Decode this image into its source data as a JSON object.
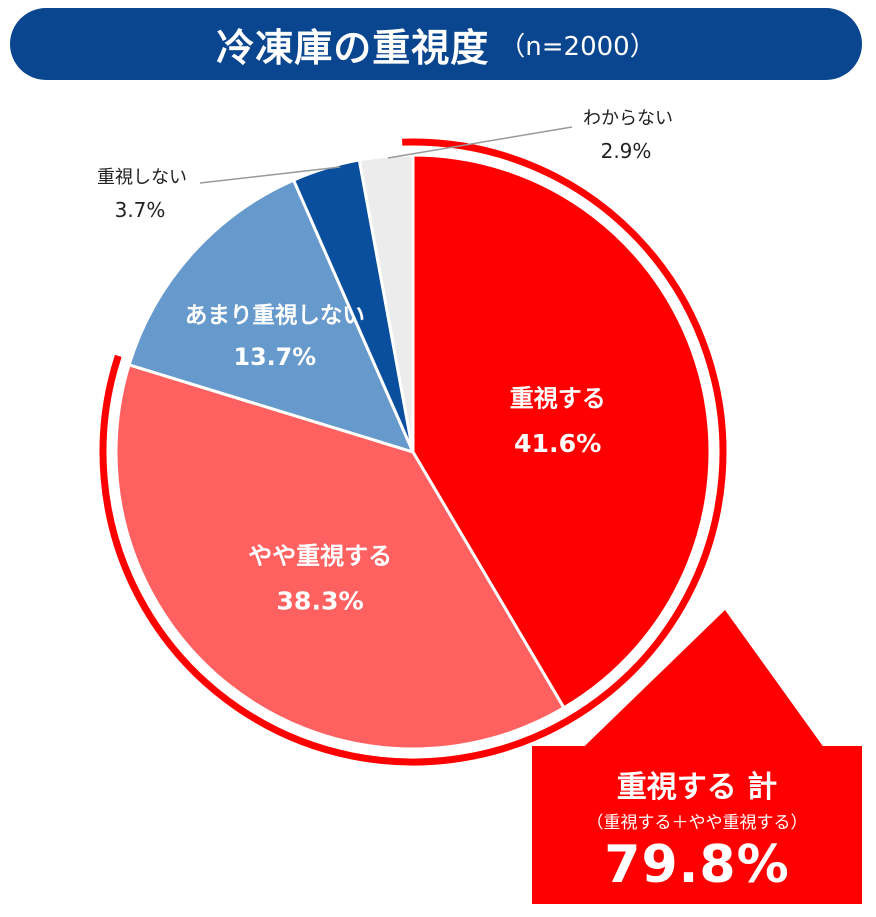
{
  "title": {
    "main": "冷凍庫の重視度",
    "sub": "（n=2000）"
  },
  "chart_data": {
    "type": "pie",
    "categories": [
      "重視する",
      "やや重視する",
      "あまり重視しない",
      "重視しない",
      "わからない"
    ],
    "values": [
      41.6,
      38.3,
      13.7,
      3.7,
      2.9
    ],
    "labels": [
      "41.6%",
      "38.3%",
      "13.7%",
      "3.7%",
      "2.9%"
    ],
    "colors": [
      "#ff0000",
      "#ff6060",
      "#6699cc",
      "#0a4f9e",
      "#ececec"
    ],
    "start_angle": "12 o'clock",
    "direction": "clockwise"
  },
  "callout": {
    "title": "重視する 計",
    "subtitle": "（重視する＋やや重視する）",
    "value": "79.8%",
    "color": "#ff0000"
  }
}
